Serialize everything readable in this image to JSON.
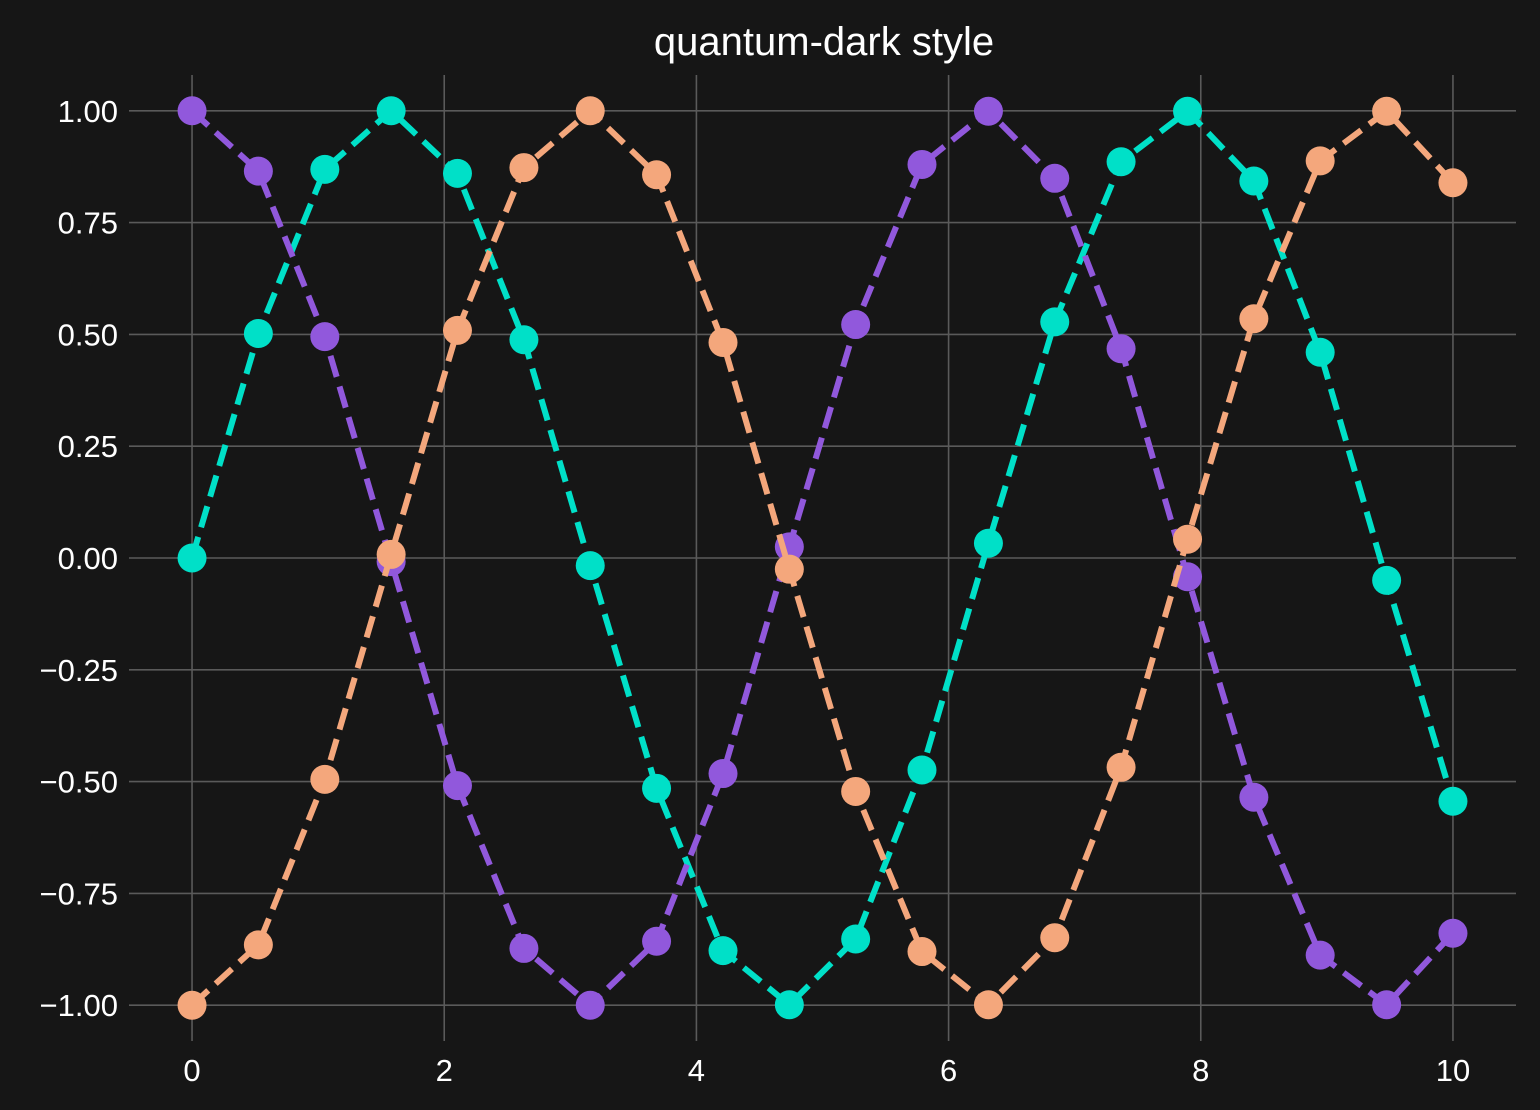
{
  "colors": {
    "background": "#161616",
    "text": "#ffffff",
    "grid": "#5a5a5a"
  },
  "chart_data": {
    "type": "line",
    "title": "quantum-dark style",
    "xlabel": "",
    "ylabel": "",
    "xlim": [
      -0.5,
      10.5
    ],
    "ylim": [
      -1.08,
      1.08
    ],
    "grid": true,
    "line_style": "dashed",
    "marker": "circle",
    "x_ticks": [
      0,
      2,
      4,
      6,
      8,
      10
    ],
    "x_tick_labels": [
      "0",
      "2",
      "4",
      "6",
      "8",
      "10"
    ],
    "y_ticks": [
      1.0,
      0.75,
      0.5,
      0.25,
      0.0,
      -0.25,
      -0.5,
      -0.75,
      -1.0
    ],
    "y_tick_labels": [
      "1.00",
      "0.75",
      "0.50",
      "0.25",
      "0.00",
      "−0.25",
      "−0.50",
      "−0.75",
      "−1.00"
    ],
    "x": [
      0.0,
      0.526,
      1.053,
      1.579,
      2.105,
      2.632,
      3.158,
      3.684,
      4.211,
      4.737,
      5.263,
      5.789,
      6.316,
      6.842,
      7.368,
      7.895,
      8.421,
      8.947,
      9.474,
      10.0
    ],
    "series": [
      {
        "color": "#00e0c8",
        "values": [
          0.0,
          0.502,
          0.869,
          1.0,
          0.86,
          0.488,
          -0.017,
          -0.515,
          -0.878,
          -0.999,
          -0.852,
          -0.474,
          0.033,
          0.528,
          0.886,
          0.999,
          0.843,
          0.46,
          -0.05,
          -0.544
        ]
      },
      {
        "color": "#9158dc",
        "values": [
          1.0,
          0.865,
          0.495,
          -0.008,
          -0.509,
          -0.873,
          -1.0,
          -0.857,
          -0.482,
          0.025,
          0.522,
          0.88,
          0.999,
          0.849,
          0.468,
          -0.042,
          -0.535,
          -0.888,
          -0.999,
          -0.839
        ]
      },
      {
        "color": "#f4a77c",
        "values": [
          -1.0,
          -0.865,
          -0.495,
          0.008,
          0.509,
          0.873,
          1.0,
          0.857,
          0.482,
          -0.025,
          -0.522,
          -0.88,
          -0.999,
          -0.849,
          -0.468,
          0.042,
          0.535,
          0.888,
          0.999,
          0.839
        ]
      }
    ]
  }
}
